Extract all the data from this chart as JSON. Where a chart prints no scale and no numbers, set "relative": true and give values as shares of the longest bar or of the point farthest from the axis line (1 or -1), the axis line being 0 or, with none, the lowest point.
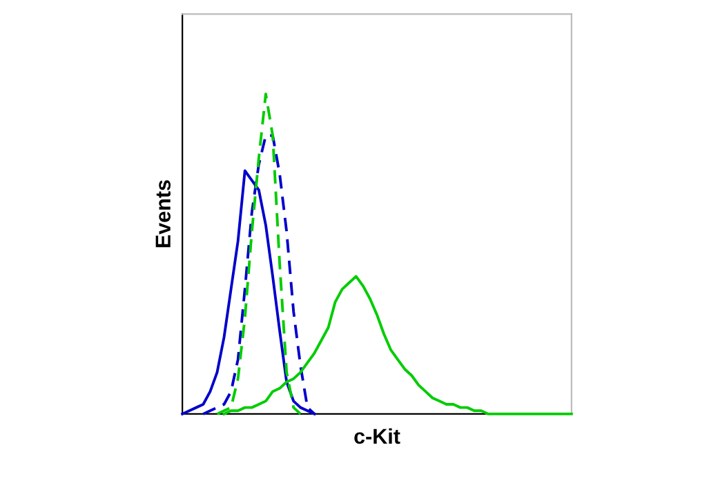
{
  "chart_data": {
    "type": "line",
    "xlabel": "c-Kit",
    "ylabel": "Events",
    "relative": true,
    "grid": false,
    "marker": "none",
    "categories": [
      null,
      null,
      null,
      null,
      null,
      null,
      null,
      null,
      null,
      null,
      null,
      null,
      null,
      null,
      null,
      null,
      null,
      null,
      null,
      null,
      null,
      null,
      null,
      null,
      null,
      null,
      null,
      null,
      null,
      null,
      null,
      null,
      null,
      null,
      null,
      null,
      null,
      null,
      null,
      null,
      null,
      null,
      null,
      null,
      null,
      null,
      null,
      null,
      null,
      null,
      null,
      null,
      null,
      null,
      null,
      null,
      null
    ],
    "series": [
      {
        "color": "#0000cc",
        "line_style": "solid",
        "values": [
          0,
          0.01,
          0.02,
          0.03,
          0.07,
          0.13,
          0.24,
          0.39,
          0.54,
          0.76,
          0.73,
          0.7,
          0.59,
          0.43,
          0.26,
          0.1,
          0.04,
          0.02,
          0.01,
          0,
          null,
          null,
          null,
          null,
          null,
          null,
          null,
          null,
          null,
          null,
          null,
          null,
          null,
          null,
          null,
          null,
          null,
          null,
          null,
          null,
          null,
          null,
          null,
          null,
          null,
          null,
          null,
          null,
          null,
          null,
          null,
          null,
          null,
          null,
          null,
          null,
          null
        ]
      },
      {
        "color": "#0000cc",
        "line_style": "dashed",
        "values": [
          null,
          null,
          null,
          0,
          0.01,
          0.02,
          0.03,
          0.07,
          0.17,
          0.39,
          0.63,
          0.78,
          0.87,
          0.87,
          0.75,
          0.57,
          0.32,
          0.15,
          0.02,
          0,
          null,
          null,
          null,
          null,
          null,
          null,
          null,
          null,
          null,
          null,
          null,
          null,
          null,
          null,
          null,
          null,
          null,
          null,
          null,
          null,
          null,
          null,
          null,
          null,
          null,
          null,
          null,
          null,
          null,
          null,
          null,
          null,
          null,
          null,
          null,
          null,
          null
        ]
      },
      {
        "color": "#00cc00",
        "line_style": "dashed",
        "values": [
          null,
          null,
          null,
          null,
          null,
          0,
          0.01,
          0.02,
          0.11,
          0.3,
          0.57,
          0.8,
          1.0,
          0.87,
          0.47,
          0.13,
          0.02,
          0,
          null,
          null,
          null,
          null,
          null,
          null,
          null,
          null,
          null,
          null,
          null,
          null,
          null,
          null,
          null,
          null,
          null,
          null,
          null,
          null,
          null,
          null,
          null,
          null,
          null,
          null,
          null,
          null,
          null,
          null,
          null,
          null,
          null,
          null,
          null,
          null,
          null,
          null,
          null
        ]
      },
      {
        "color": "#00cc00",
        "line_style": "solid",
        "values": [
          null,
          null,
          null,
          null,
          null,
          null,
          0,
          0.01,
          0.01,
          0.02,
          0.02,
          0.03,
          0.04,
          0.07,
          0.08,
          0.1,
          0.11,
          0.13,
          0.16,
          0.19,
          0.23,
          0.27,
          0.35,
          0.39,
          0.41,
          0.43,
          0.4,
          0.36,
          0.31,
          0.25,
          0.2,
          0.17,
          0.14,
          0.12,
          0.09,
          0.07,
          0.05,
          0.04,
          0.03,
          0.03,
          0.02,
          0.02,
          0.01,
          0.01,
          0,
          0,
          0,
          0,
          0,
          0,
          0,
          0,
          0,
          0,
          0,
          0,
          0
        ]
      }
    ]
  }
}
